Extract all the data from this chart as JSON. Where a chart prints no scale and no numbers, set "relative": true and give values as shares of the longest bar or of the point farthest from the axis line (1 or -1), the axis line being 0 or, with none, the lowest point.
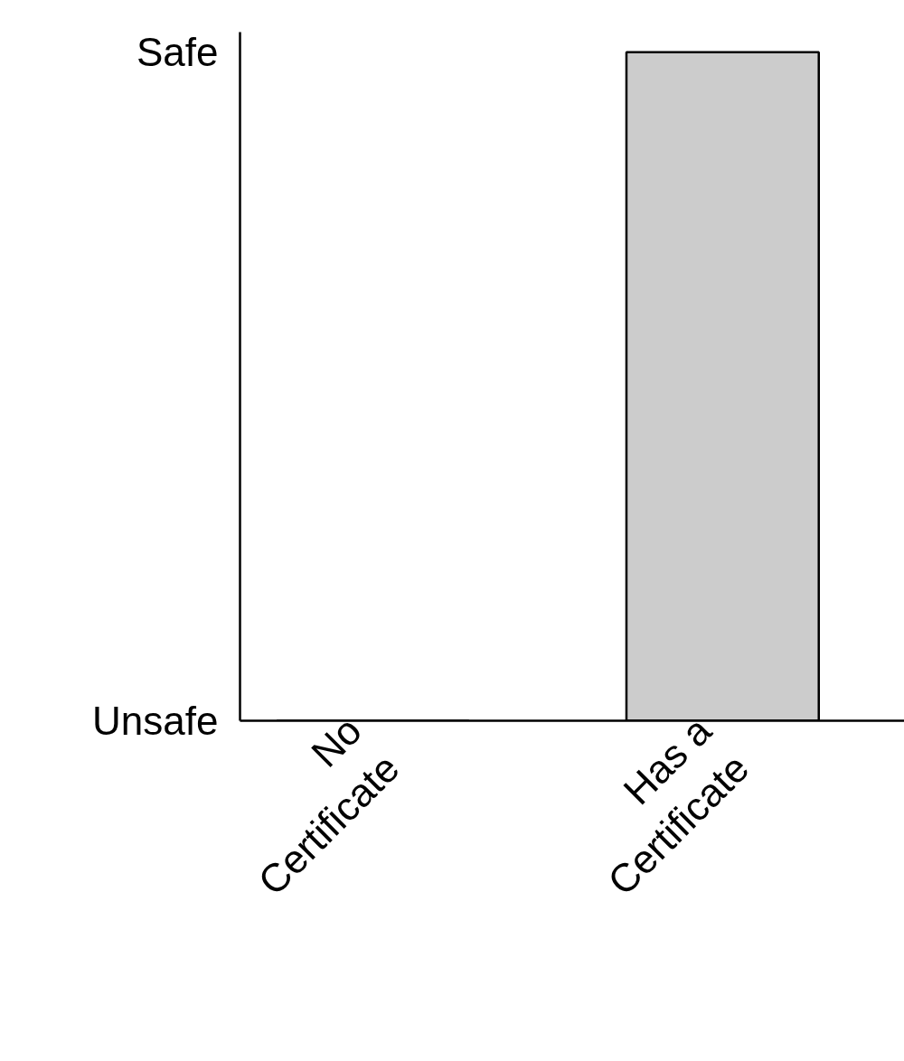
{
  "chart_data": {
    "type": "bar",
    "relative": true,
    "categories": [
      "No\nCertificate",
      "Has a\nCertificate"
    ],
    "values": [
      0,
      1
    ],
    "color": "#cccccc",
    "annotations": [
      "Unsafe",
      "Safe"
    ],
    "grid": false
  }
}
